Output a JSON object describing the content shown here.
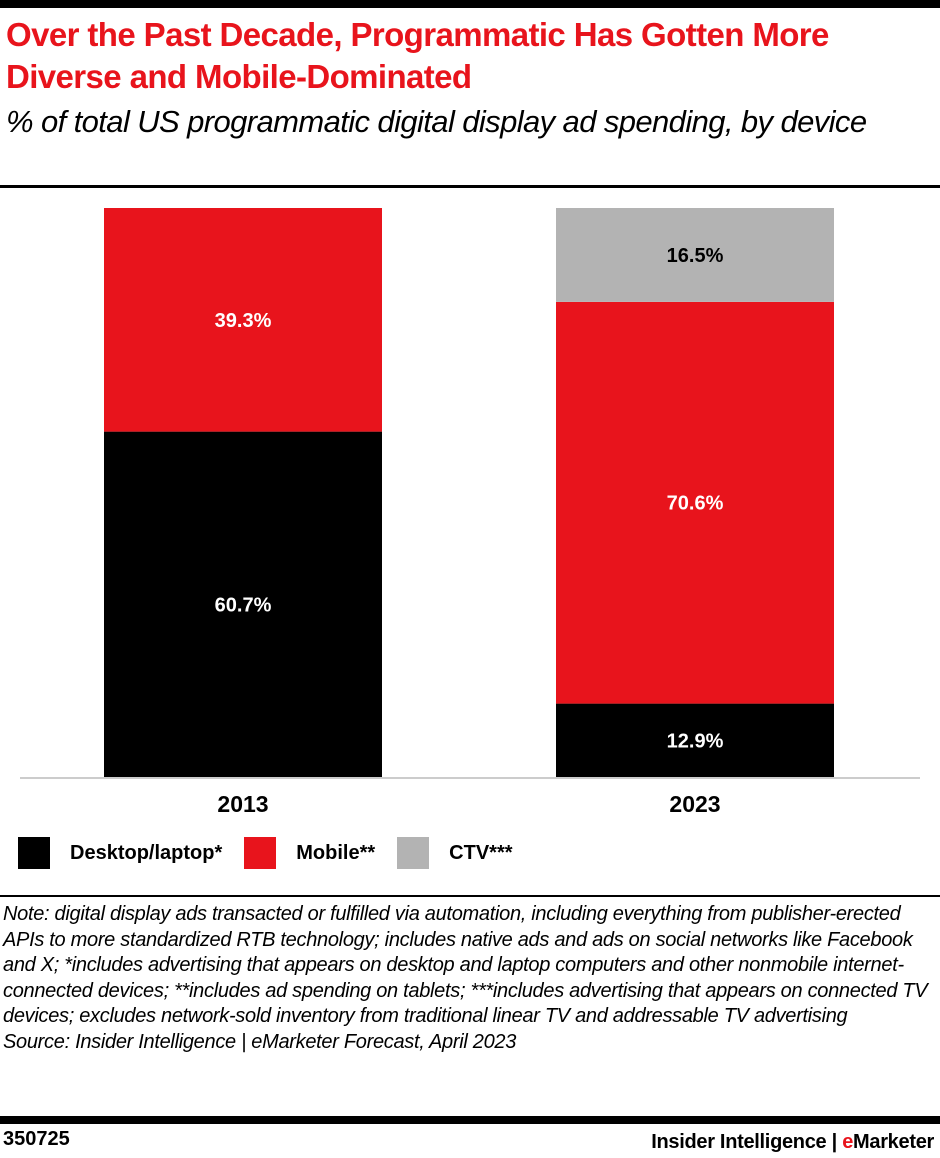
{
  "header": {
    "title": "Over the Past Decade, Programmatic Has Gotten More Diverse and Mobile-Dominated",
    "subtitle": "% of total US programmatic digital display ad spending, by device"
  },
  "chart_data": {
    "type": "bar",
    "stacked": true,
    "categories": [
      "2013",
      "2023"
    ],
    "series": [
      {
        "name": "Desktop/laptop*",
        "color": "#000000",
        "values": [
          60.7,
          12.9
        ],
        "labels": [
          "60.7%",
          "12.9%"
        ],
        "label_color": "#ffffff"
      },
      {
        "name": "Mobile**",
        "color": "#e8141c",
        "values": [
          39.3,
          70.6
        ],
        "labels": [
          "39.3%",
          "70.6%"
        ],
        "label_color": "#ffffff"
      },
      {
        "name": "CTV***",
        "color": "#b3b3b3",
        "values": [
          0,
          16.5
        ],
        "labels": [
          "",
          "16.5%"
        ],
        "label_color": "#000000"
      }
    ],
    "ylim": [
      0,
      100
    ],
    "grid": false,
    "legend_position": "bottom-left"
  },
  "legend": [
    "Desktop/laptop*",
    "Mobile**",
    "CTV***"
  ],
  "footer": {
    "note": "Note: digital display ads transacted or fulfilled via automation, including everything from publisher-erected APIs to more standardized RTB technology; includes native ads and ads on social networks like Facebook and X; *includes advertising that appears on desktop and laptop computers and other nonmobile internet-connected devices; **includes ad spending on tablets; ***includes advertising that appears on connected TV devices; excludes network-sold inventory from traditional linear TV and addressable TV advertising",
    "source": "Source: Insider Intelligence | eMarketer Forecast, April 2023",
    "chart_id": "350725",
    "brand_left": "Insider Intelligence | ",
    "brand_right_e": "e",
    "brand_right_rest": "Marketer"
  }
}
